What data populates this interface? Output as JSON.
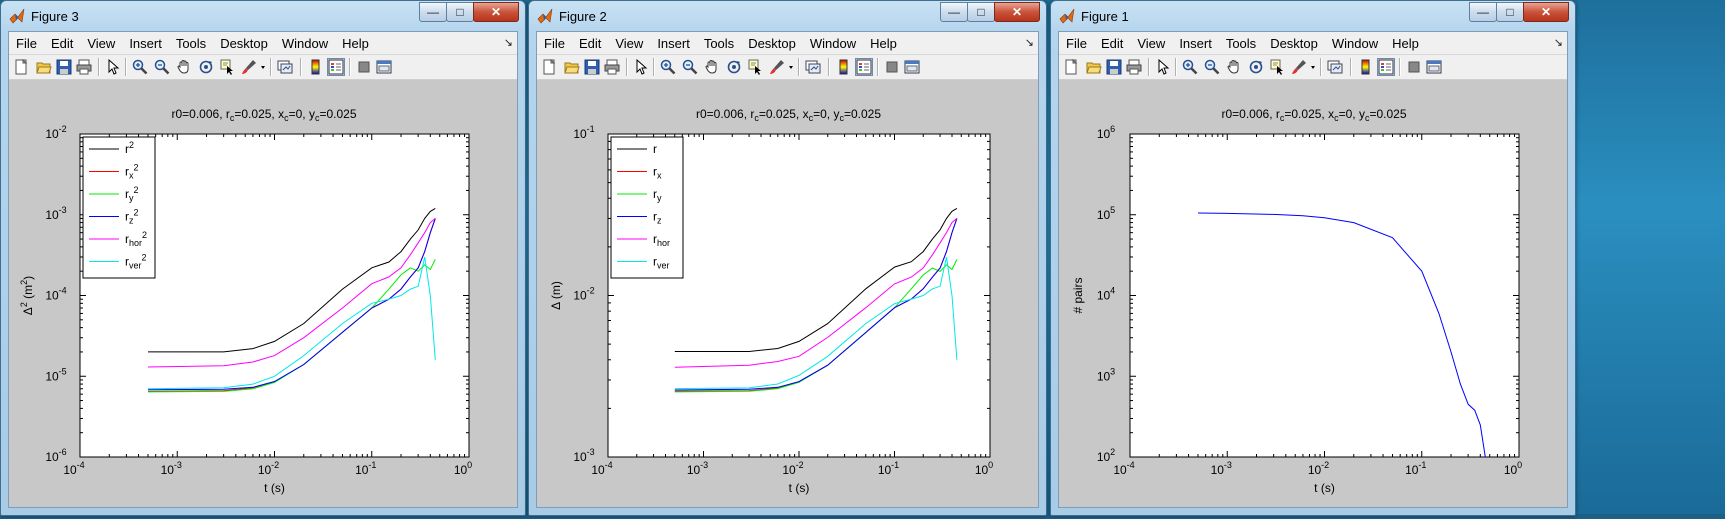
{
  "menu_items": [
    "File",
    "Edit",
    "View",
    "Insert",
    "Tools",
    "Desktop",
    "Window",
    "Help"
  ],
  "toolbar_icons": [
    "new-figure-icon",
    "open-file-icon",
    "save-icon",
    "print-icon",
    "edit-plot-arrow-icon",
    "zoom-in-icon",
    "zoom-out-icon",
    "pan-hand-icon",
    "rotate-3d-icon",
    "data-cursor-icon",
    "brush-icon",
    "brush-menu-arrow-icon",
    "link-plot-icon",
    "insert-colorbar-icon",
    "insert-legend-icon",
    "hide-plot-tools-icon",
    "show-plot-tools-icon"
  ],
  "colors": {
    "black": "#000000",
    "red": "#ff0000",
    "green": "#00ee00",
    "blue": "#0000ff",
    "magenta": "#ff00ff",
    "cyan": "#00e8e8"
  },
  "windows": [
    {
      "title": "Figure 3",
      "chart_data": {
        "type": "line",
        "title": "r0=0.006, r_c=0.025, x_c=0, y_c=0.025",
        "xlabel": "t (s)",
        "ylabel": "Δ^2 (m^2)",
        "x_scale": "log",
        "y_scale": "log",
        "xlim": [
          0.0001,
          1
        ],
        "ylim": [
          1e-06,
          0.01
        ],
        "x_ticks": [
          -4,
          -3,
          -2,
          -1,
          0
        ],
        "y_ticks": [
          -6,
          -5,
          -4,
          -3,
          -2
        ],
        "legend_position": "top-left",
        "series": [
          {
            "name": "r^2",
            "color": "black",
            "x": [
              0.0005,
              0.003,
              0.006,
              0.01,
              0.02,
              0.05,
              0.1,
              0.15,
              0.2,
              0.25,
              0.3,
              0.35,
              0.4,
              0.45
            ],
            "y": [
              2e-05,
              2e-05,
              2.2e-05,
              2.7e-05,
              4.5e-05,
              0.00012,
              0.00022,
              0.00026,
              0.00035,
              0.0005,
              0.00065,
              0.0009,
              0.0011,
              0.0012
            ]
          },
          {
            "name": "r_x^2",
            "color": "red",
            "x": [
              0.0005,
              0.003,
              0.006,
              0.01,
              0.02,
              0.05,
              0.1,
              0.15,
              0.2,
              0.25,
              0.3,
              0.35,
              0.4,
              0.45
            ],
            "y": [
              6.5e-06,
              6.6e-06,
              7.2e-06,
              8.5e-06,
              1.4e-05,
              3.5e-05,
              7e-05,
              9e-05,
              0.00012,
              0.00017,
              0.00022,
              0.00035,
              0.0006,
              0.0009
            ]
          },
          {
            "name": "r_y^2",
            "color": "green",
            "x": [
              0.0005,
              0.003,
              0.006,
              0.01,
              0.02,
              0.05,
              0.1,
              0.15,
              0.2,
              0.25,
              0.3,
              0.35,
              0.4,
              0.45
            ],
            "y": [
              6.4e-06,
              6.5e-06,
              7e-06,
              8.4e-06,
              1.4e-05,
              3.5e-05,
              7e-05,
              0.00012,
              0.00018,
              0.00022,
              0.0002,
              0.00024,
              0.00021,
              0.00028
            ]
          },
          {
            "name": "r_z^2",
            "color": "blue",
            "x": [
              0.0005,
              0.003,
              0.006,
              0.01,
              0.02,
              0.05,
              0.1,
              0.15,
              0.2,
              0.25,
              0.3,
              0.35,
              0.4,
              0.45
            ],
            "y": [
              6.8e-06,
              6.9e-06,
              7.3e-06,
              8.6e-06,
              1.4e-05,
              3.5e-05,
              7e-05,
              9e-05,
              0.00012,
              0.00017,
              0.00022,
              0.00035,
              0.0006,
              0.0009
            ]
          },
          {
            "name": "r_hor^2",
            "color": "magenta",
            "x": [
              0.0005,
              0.003,
              0.006,
              0.01,
              0.02,
              0.05,
              0.1,
              0.15,
              0.2,
              0.25,
              0.3,
              0.35,
              0.4,
              0.45
            ],
            "y": [
              1.3e-05,
              1.35e-05,
              1.5e-05,
              1.8e-05,
              3e-05,
              7e-05,
              0.00014,
              0.00017,
              0.00022,
              0.00032,
              0.00045,
              0.0006,
              0.0008,
              0.0009
            ]
          },
          {
            "name": "r_ver^2",
            "color": "cyan",
            "x": [
              0.0005,
              0.003,
              0.006,
              0.01,
              0.02,
              0.05,
              0.1,
              0.15,
              0.2,
              0.25,
              0.3,
              0.35,
              0.4,
              0.45
            ],
            "y": [
              7e-06,
              7.2e-06,
              8e-06,
              1e-05,
              1.8e-05,
              4.5e-05,
              8e-05,
              9e-05,
              0.0001,
              0.00012,
              0.00013,
              0.0003,
              0.0001,
              1.6e-05
            ]
          }
        ]
      }
    },
    {
      "title": "Figure 2",
      "chart_data": {
        "type": "line",
        "title": "r0=0.006, r_c=0.025, x_c=0, y_c=0.025",
        "xlabel": "t (s)",
        "ylabel": "Δ (m)",
        "x_scale": "log",
        "y_scale": "log",
        "xlim": [
          0.0001,
          1
        ],
        "ylim": [
          0.001,
          0.1
        ],
        "x_ticks": [
          -4,
          -3,
          -2,
          -1,
          0
        ],
        "y_ticks": [
          -3,
          -2,
          -1
        ],
        "legend_position": "top-left",
        "series": [
          {
            "name": "r",
            "color": "black",
            "x": [
              0.0005,
              0.003,
              0.006,
              0.01,
              0.02,
              0.05,
              0.1,
              0.15,
              0.2,
              0.25,
              0.3,
              0.35,
              0.4,
              0.45
            ],
            "y": [
              0.0045,
              0.0045,
              0.0047,
              0.0052,
              0.0067,
              0.011,
              0.015,
              0.0162,
              0.0187,
              0.0224,
              0.0255,
              0.03,
              0.0332,
              0.0346
            ]
          },
          {
            "name": "r_x",
            "color": "red",
            "x": [
              0.0005,
              0.003,
              0.006,
              0.01,
              0.02,
              0.05,
              0.1,
              0.15,
              0.2,
              0.25,
              0.3,
              0.35,
              0.4,
              0.45
            ],
            "y": [
              0.00255,
              0.00257,
              0.00268,
              0.00292,
              0.0037,
              0.0059,
              0.0084,
              0.0095,
              0.011,
              0.013,
              0.0148,
              0.0187,
              0.0245,
              0.03
            ]
          },
          {
            "name": "r_y",
            "color": "green",
            "x": [
              0.0005,
              0.003,
              0.006,
              0.01,
              0.02,
              0.05,
              0.1,
              0.15,
              0.2,
              0.25,
              0.3,
              0.35,
              0.4,
              0.45
            ],
            "y": [
              0.00253,
              0.00255,
              0.00265,
              0.0029,
              0.0037,
              0.0059,
              0.0084,
              0.011,
              0.0134,
              0.0148,
              0.0141,
              0.0155,
              0.0145,
              0.0167
            ]
          },
          {
            "name": "r_z",
            "color": "blue",
            "x": [
              0.0005,
              0.003,
              0.006,
              0.01,
              0.02,
              0.05,
              0.1,
              0.15,
              0.2,
              0.25,
              0.3,
              0.35,
              0.4,
              0.45
            ],
            "y": [
              0.0026,
              0.00263,
              0.0027,
              0.00293,
              0.0037,
              0.0059,
              0.0084,
              0.0095,
              0.011,
              0.013,
              0.0148,
              0.0187,
              0.0245,
              0.03
            ]
          },
          {
            "name": "r_hor",
            "color": "magenta",
            "x": [
              0.0005,
              0.003,
              0.006,
              0.01,
              0.02,
              0.05,
              0.1,
              0.15,
              0.2,
              0.25,
              0.3,
              0.35,
              0.4,
              0.45
            ],
            "y": [
              0.0036,
              0.0037,
              0.0039,
              0.0042,
              0.0055,
              0.0084,
              0.0118,
              0.013,
              0.0148,
              0.0179,
              0.0212,
              0.0245,
              0.0283,
              0.03
            ]
          },
          {
            "name": "r_ver",
            "color": "cyan",
            "x": [
              0.0005,
              0.003,
              0.006,
              0.01,
              0.02,
              0.05,
              0.1,
              0.15,
              0.2,
              0.25,
              0.3,
              0.35,
              0.4,
              0.45
            ],
            "y": [
              0.00265,
              0.00268,
              0.00283,
              0.0032,
              0.0042,
              0.0067,
              0.0089,
              0.0095,
              0.01,
              0.011,
              0.0114,
              0.0173,
              0.01,
              0.004
            ]
          }
        ]
      }
    },
    {
      "title": "Figure 1",
      "chart_data": {
        "type": "line",
        "title": "r0=0.006, r_c=0.025, x_c=0, y_c=0.025",
        "xlabel": "t (s)",
        "ylabel": "# pairs",
        "x_scale": "log",
        "y_scale": "log",
        "xlim": [
          0.0001,
          1
        ],
        "ylim": [
          100,
          1000000
        ],
        "x_ticks": [
          -4,
          -3,
          -2,
          -1,
          0
        ],
        "y_ticks": [
          2,
          3,
          4,
          5,
          6
        ],
        "series": [
          {
            "color": "blue",
            "x": [
              0.0005,
              0.001,
              0.003,
              0.006,
              0.01,
              0.02,
              0.05,
              0.1,
              0.15,
              0.2,
              0.25,
              0.3,
              0.35,
              0.4,
              0.45
            ],
            "y": [
              105000,
              104000,
              101000,
              97000,
              92000,
              80000,
              52000,
              20000,
              6000,
              2000,
              800,
              450,
              380,
              250,
              100
            ]
          }
        ]
      }
    }
  ]
}
